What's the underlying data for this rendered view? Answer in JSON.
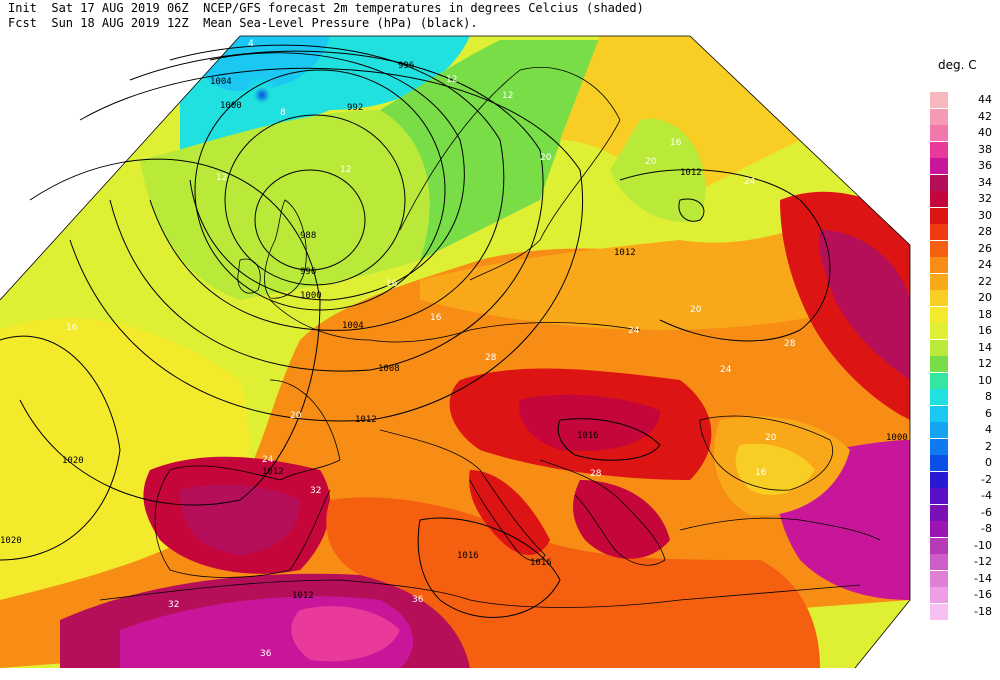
{
  "header": {
    "init_label": "Init",
    "init_time": "Sat 17 AUG 2019 06Z",
    "fcst_label": "Fcst",
    "fcst_time": "Sun 18 AUG 2019 12Z",
    "title_line1": "NCEP/GFS forecast 2m temperatures in degrees Celcius (shaded)",
    "title_line2": "Mean Sea-Level Pressure (hPa) (black)."
  },
  "legend": {
    "title": "deg. C",
    "levels": [
      {
        "label": "44",
        "color": "#f6b7bd"
      },
      {
        "label": "42",
        "color": "#f59ab5"
      },
      {
        "label": "40",
        "color": "#f277ad"
      },
      {
        "label": "38",
        "color": "#e93a9b"
      },
      {
        "label": "36",
        "color": "#c8169a"
      },
      {
        "label": "34",
        "color": "#b50f5a"
      },
      {
        "label": "32",
        "color": "#c4063a"
      },
      {
        "label": "30",
        "color": "#dd1414"
      },
      {
        "label": "28",
        "color": "#ef3a12"
      },
      {
        "label": "26",
        "color": "#f55f10"
      },
      {
        "label": "24",
        "color": "#f78d15"
      },
      {
        "label": "22",
        "color": "#f9a81a"
      },
      {
        "label": "20",
        "color": "#f8cd24"
      },
      {
        "label": "18",
        "color": "#f3ea2c"
      },
      {
        "label": "16",
        "color": "#dff034"
      },
      {
        "label": "14",
        "color": "#b9ea3a"
      },
      {
        "label": "12",
        "color": "#78dd46"
      },
      {
        "label": "10",
        "color": "#35e6a0"
      },
      {
        "label": "8",
        "color": "#20e0e0"
      },
      {
        "label": "6",
        "color": "#1ac8f2"
      },
      {
        "label": "4",
        "color": "#14a4f2"
      },
      {
        "label": "2",
        "color": "#0f7aef"
      },
      {
        "label": "0",
        "color": "#0b4fe6"
      },
      {
        "label": "-2",
        "color": "#2a19d4"
      },
      {
        "label": "-4",
        "color": "#5a10c8"
      },
      {
        "label": "-6",
        "color": "#7a10b6"
      },
      {
        "label": "-8",
        "color": "#9a15b2"
      },
      {
        "label": "-10",
        "color": "#b73ab8"
      },
      {
        "label": "-12",
        "color": "#cc5ec6"
      },
      {
        "label": "-14",
        "color": "#df7fd6"
      },
      {
        "label": "-16",
        "color": "#ec9fe6"
      },
      {
        "label": "-18",
        "color": "#f7c0f2"
      }
    ]
  },
  "map": {
    "isobar_labels": [
      "1004",
      "1000",
      "996",
      "992",
      "988",
      "996",
      "1000",
      "1004",
      "1008",
      "1012",
      "1012",
      "1012",
      "1016",
      "1016",
      "1016",
      "1020",
      "1020",
      "1012",
      "1012",
      "1000"
    ],
    "temp_labels": [
      "4",
      "8",
      "12",
      "12",
      "12",
      "12",
      "16",
      "16",
      "16",
      "16",
      "20",
      "20",
      "20",
      "24",
      "24",
      "24",
      "28",
      "28",
      "32",
      "32",
      "36",
      "36",
      "20",
      "24",
      "28",
      "16",
      "20"
    ]
  }
}
